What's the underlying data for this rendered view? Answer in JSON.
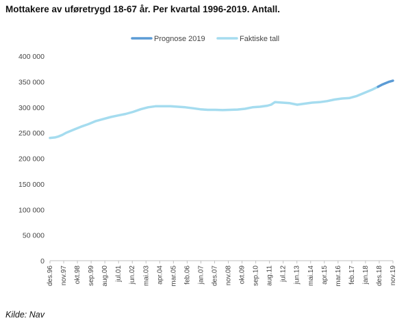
{
  "chart_data": {
    "type": "line",
    "title": "Mottakere av uføretrygd 18-67 år. Per kvartal 1996-2019. Antall.",
    "source": "Kilde: Nav",
    "ylim": [
      0,
      400000
    ],
    "yticks": [
      0,
      50000,
      100000,
      150000,
      200000,
      250000,
      300000,
      350000,
      400000
    ],
    "ytick_labels": [
      "0",
      "50 000",
      "100 000",
      "150 000",
      "200 000",
      "250 000",
      "300 000",
      "350 000",
      "400 000"
    ],
    "grid": false,
    "legend_position": "top",
    "x_labels": [
      "des.96",
      "nov.97",
      "okt.98",
      "sep.99",
      "aug.00",
      "jul.01",
      "jun.02",
      "mai.03",
      "apr.04",
      "mar.05",
      "feb.06",
      "jan.07",
      "des.07",
      "nov.08",
      "okt.09",
      "sep.10",
      "aug.11",
      "jul.12",
      "jun.13",
      "mai.14",
      "apr.15",
      "mar.16",
      "feb.17",
      "jan.18",
      "des.18",
      "nov.19"
    ],
    "series": [
      {
        "name": "Prognose 2019",
        "color": "#5b9bd5",
        "points": [
          [
            2018.92,
            340000
          ],
          [
            2019.17,
            344000
          ],
          [
            2019.42,
            347000
          ],
          [
            2019.67,
            350000
          ],
          [
            2019.92,
            352000
          ]
        ]
      },
      {
        "name": "Faktiske tall",
        "color": "#a5dcef",
        "points": [
          [
            1996.92,
            240000
          ],
          [
            1997.25,
            241000
          ],
          [
            1997.5,
            243000
          ],
          [
            1997.75,
            246000
          ],
          [
            1998.0,
            250000
          ],
          [
            1998.5,
            256000
          ],
          [
            1999.0,
            262000
          ],
          [
            1999.5,
            267000
          ],
          [
            2000.0,
            273000
          ],
          [
            2000.5,
            277000
          ],
          [
            2001.0,
            281000
          ],
          [
            2001.5,
            284000
          ],
          [
            2002.0,
            287000
          ],
          [
            2002.5,
            291000
          ],
          [
            2003.0,
            296000
          ],
          [
            2003.5,
            300000
          ],
          [
            2004.0,
            302000
          ],
          [
            2004.5,
            302000
          ],
          [
            2005.0,
            302000
          ],
          [
            2005.5,
            301000
          ],
          [
            2006.0,
            300000
          ],
          [
            2006.5,
            298000
          ],
          [
            2007.0,
            296000
          ],
          [
            2007.5,
            295000
          ],
          [
            2008.0,
            295000
          ],
          [
            2008.5,
            294500
          ],
          [
            2009.0,
            295000
          ],
          [
            2009.5,
            295500
          ],
          [
            2010.0,
            297000
          ],
          [
            2010.5,
            300000
          ],
          [
            2011.0,
            301000
          ],
          [
            2011.5,
            303000
          ],
          [
            2011.75,
            305000
          ],
          [
            2012.0,
            310000
          ],
          [
            2012.5,
            309000
          ],
          [
            2013.0,
            308000
          ],
          [
            2013.5,
            305000
          ],
          [
            2014.0,
            307000
          ],
          [
            2014.5,
            309000
          ],
          [
            2015.0,
            310000
          ],
          [
            2015.5,
            312000
          ],
          [
            2016.0,
            315000
          ],
          [
            2016.5,
            317000
          ],
          [
            2017.0,
            318000
          ],
          [
            2017.5,
            322000
          ],
          [
            2018.0,
            328000
          ],
          [
            2018.5,
            334000
          ],
          [
            2018.92,
            340000
          ]
        ]
      }
    ]
  }
}
